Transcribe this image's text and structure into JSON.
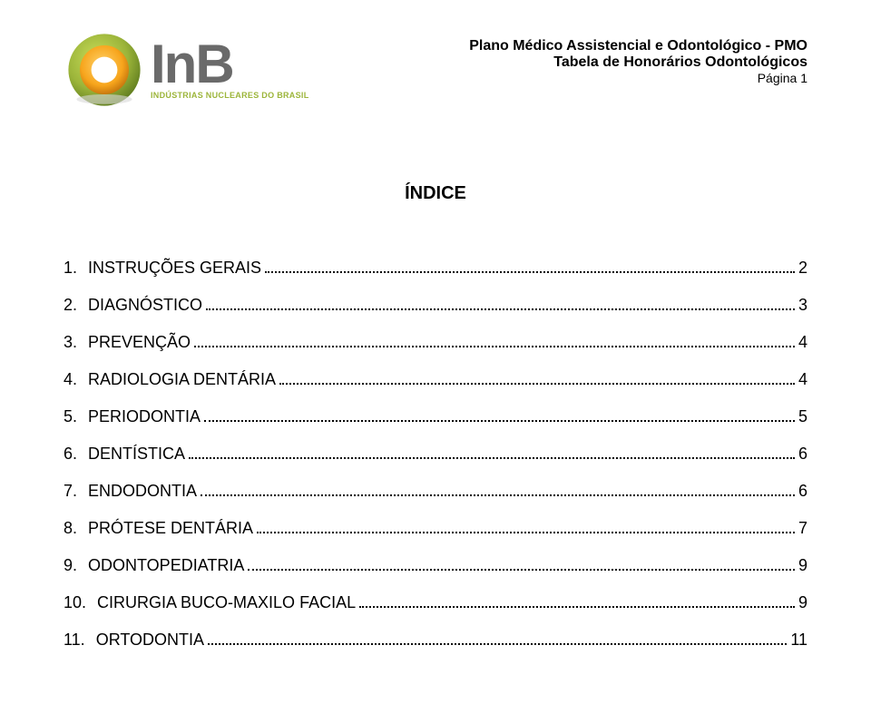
{
  "logo": {
    "text": "InB",
    "subtitle": "INDÚSTRIAS NUCLEARES DO BRASIL",
    "ring_outer_color": "#9cb53a",
    "ring_inner_color": "#f7a51c",
    "ring_shadow_color": "#5d7a1e",
    "text_color": "#6a6a6a",
    "subtitle_color": "#9cb53a"
  },
  "header": {
    "line1": "Plano Médico Assistencial e Odontológico - PMO",
    "line2": "Tabela de Honorários Odontológicos",
    "line3": "Página 1"
  },
  "index_title": "ÍNDICE",
  "toc": [
    {
      "num": "1.",
      "label": "INSTRUÇÕES GERAIS",
      "page": "2"
    },
    {
      "num": "2.",
      "label": "DIAGNÓSTICO",
      "page": "3"
    },
    {
      "num": "3.",
      "label": "PREVENÇÃO",
      "page": "4"
    },
    {
      "num": "4.",
      "label": "RADIOLOGIA DENTÁRIA",
      "page": "4"
    },
    {
      "num": "5.",
      "label": "PERIODONTIA",
      "page": "5"
    },
    {
      "num": "6.",
      "label": "DENTÍSTICA",
      "page": "6"
    },
    {
      "num": "7.",
      "label": "ENDODONTIA",
      "page": "6"
    },
    {
      "num": "8.",
      "label": "PRÓTESE DENTÁRIA",
      "page": "7"
    },
    {
      "num": "9.",
      "label": "ODONTOPEDIATRIA",
      "page": "9"
    },
    {
      "num": "10.",
      "label": "CIRURGIA BUCO-MAXILO FACIAL",
      "page": "9"
    },
    {
      "num": "11.",
      "label": "ORTODONTIA",
      "page": "11"
    }
  ],
  "styles": {
    "body_font": "Arial",
    "toc_fontsize_pt": 14,
    "title_fontsize_pt": 16,
    "background_color": "#ffffff",
    "text_color": "#000000"
  }
}
